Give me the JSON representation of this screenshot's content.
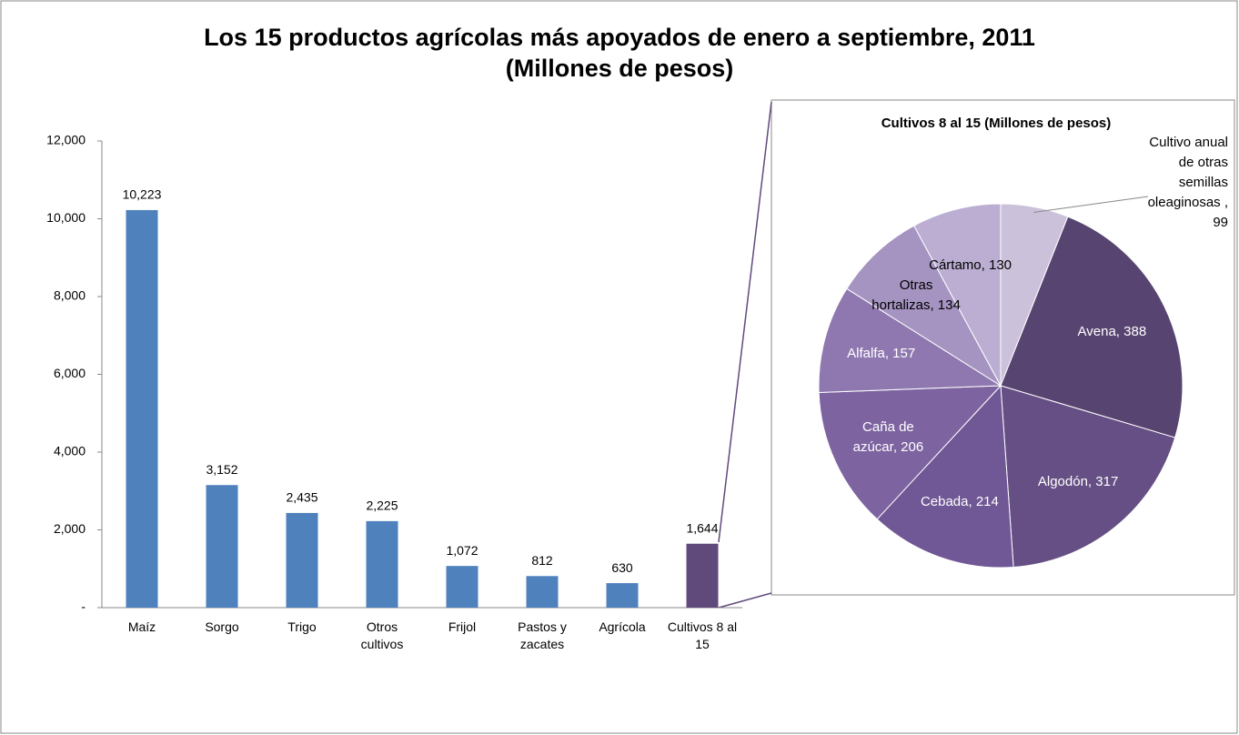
{
  "title": "Los 15 productos agrícolas más apoyados de enero a septiembre, 2011",
  "subtitle": "(Millones de pesos)",
  "chart_data": [
    {
      "type": "bar",
      "categories": [
        "Maíz",
        "Sorgo",
        "Trigo",
        "Otros cultivos",
        "Frijol",
        "Pastos y zacates",
        "Agrícola",
        "Cultivos 8 al 15"
      ],
      "values": [
        10223,
        3152,
        2435,
        2225,
        1072,
        812,
        630,
        1644
      ],
      "value_labels": [
        "10,223",
        "3,152",
        "2,435",
        "2,225",
        "1,072",
        "812",
        "630",
        "1,644"
      ],
      "colors": [
        "#4f81bd",
        "#4f81bd",
        "#4f81bd",
        "#4f81bd",
        "#4f81bd",
        "#4f81bd",
        "#4f81bd",
        "#604a7b"
      ],
      "ylim": [
        0,
        12000
      ],
      "yticks": [
        {
          "value": 0,
          "label": "-"
        },
        {
          "value": 2000,
          "label": "2,000"
        },
        {
          "value": 4000,
          "label": "4,000"
        },
        {
          "value": 6000,
          "label": "6,000"
        },
        {
          "value": 8000,
          "label": "8,000"
        },
        {
          "value": 10000,
          "label": "10,000"
        },
        {
          "value": 12000,
          "label": "12,000"
        }
      ]
    },
    {
      "type": "pie",
      "title": "Cultivos 8 al 15 (Millones de pesos)",
      "values": [
        99,
        388,
        317,
        214,
        206,
        157,
        134,
        130
      ],
      "value_labels": [
        "Cultivo anual de otras semillas oleaginosas , 99",
        "Avena,  388",
        "Algodón, 317",
        "Cebada, 214",
        "Caña de azúcar, 206",
        "Alfalfa,  157",
        "Otras hortalizas, 134",
        "Cártamo, 130"
      ],
      "colors": [
        "#ccc1da",
        "#574470",
        "#654f84",
        "#705795",
        "#7d63a0",
        "#8f78b0",
        "#a594c1",
        "#bbaed2"
      ],
      "label_colors": [
        "#000000",
        "#ffffff",
        "#ffffff",
        "#ffffff",
        "#ffffff",
        "#ffffff",
        "#000000",
        "#000000"
      ]
    }
  ]
}
